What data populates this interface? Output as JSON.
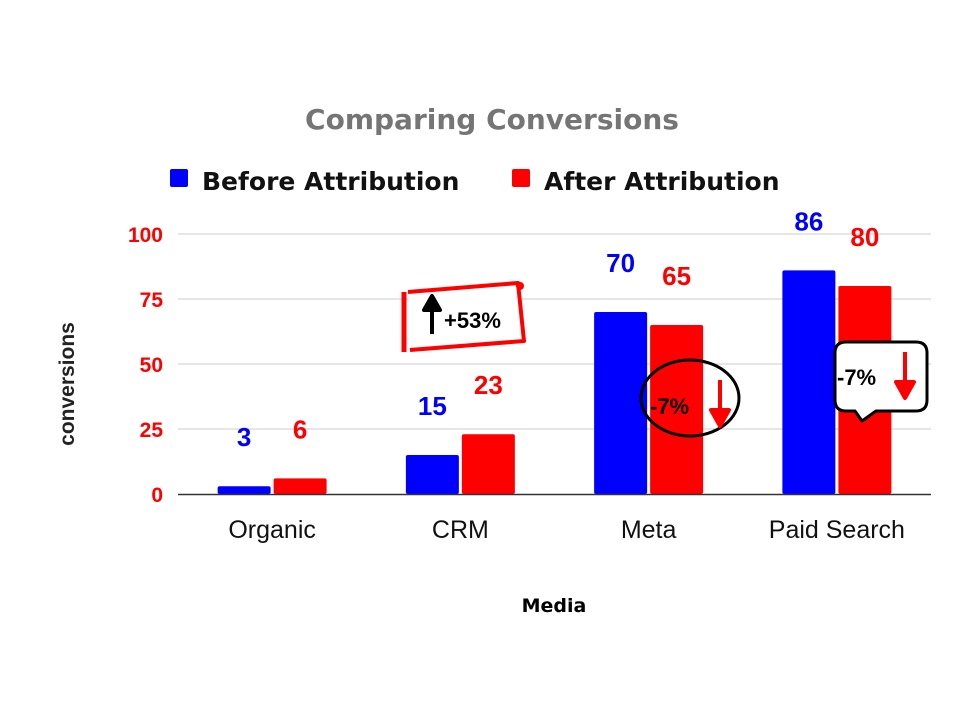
{
  "chart_data": {
    "type": "bar",
    "title": "Comparing Conversions",
    "xlabel": "Media",
    "ylabel": "conversions",
    "categories": [
      "Organic",
      "CRM",
      "Meta",
      "Paid Search"
    ],
    "series": [
      {
        "name": "Before Attribution",
        "color": "#0000ff",
        "values": [
          3,
          15,
          70,
          86
        ]
      },
      {
        "name": "After Attribution",
        "color": "#ff0000",
        "values": [
          6,
          23,
          65,
          80
        ]
      }
    ],
    "ylim": [
      0,
      100
    ],
    "yticks": [
      "0",
      "25",
      "50",
      "75",
      "100"
    ],
    "grid": true,
    "legend_position": "top",
    "annotations": [
      {
        "category": "CRM",
        "text": "+53%",
        "arrow": "up",
        "shape": "scroll-banner"
      },
      {
        "category": "Meta",
        "text": "-7%",
        "arrow": "down",
        "shape": "oval"
      },
      {
        "category": "Paid Search",
        "text": "-7%",
        "arrow": "down",
        "shape": "speech-bubble"
      }
    ]
  }
}
